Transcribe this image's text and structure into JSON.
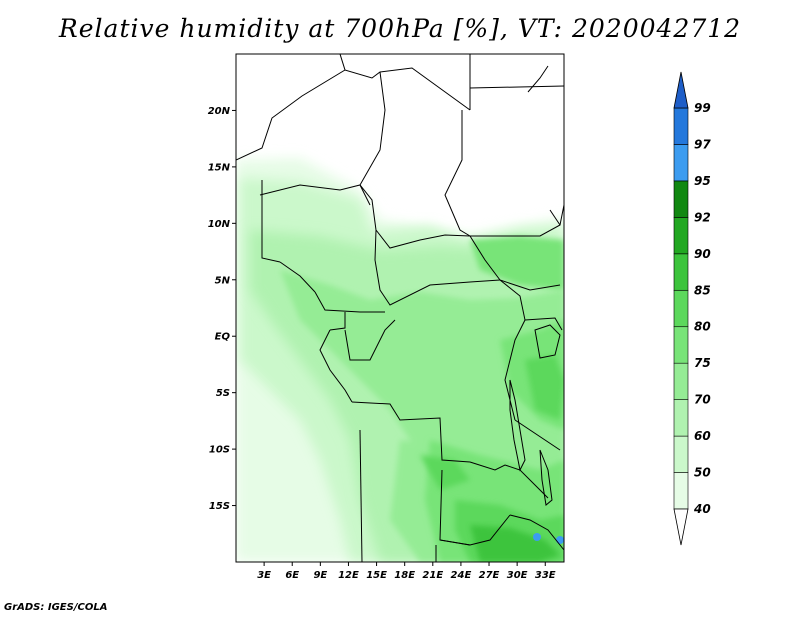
{
  "title": "Relative humidity at 700hPa [%], VT: 2020042712",
  "credit": "GrADS: IGES/COLA",
  "map": {
    "lon_range": [
      0,
      35
    ],
    "lat_range": [
      -20,
      25
    ],
    "lat_ticks": [
      {
        "value": 20,
        "label": "20N"
      },
      {
        "value": 15,
        "label": "15N"
      },
      {
        "value": 10,
        "label": "10N"
      },
      {
        "value": 5,
        "label": "5N"
      },
      {
        "value": 0,
        "label": "EQ"
      },
      {
        "value": -5,
        "label": "5S"
      },
      {
        "value": -10,
        "label": "10S"
      },
      {
        "value": -15,
        "label": "15S"
      }
    ],
    "lon_ticks": [
      {
        "value": 3,
        "label": "3E"
      },
      {
        "value": 6,
        "label": "6E"
      },
      {
        "value": 9,
        "label": "9E"
      },
      {
        "value": 12,
        "label": "12E"
      },
      {
        "value": 15,
        "label": "15E"
      },
      {
        "value": 18,
        "label": "18E"
      },
      {
        "value": 21,
        "label": "21E"
      },
      {
        "value": 24,
        "label": "24E"
      },
      {
        "value": 27,
        "label": "27E"
      },
      {
        "value": 30,
        "label": "30E"
      },
      {
        "value": 33,
        "label": "33E"
      }
    ]
  },
  "colorbar": {
    "levels": [
      {
        "label": "40",
        "color": "#ffffff"
      },
      {
        "label": "50",
        "color": "#e6fce6"
      },
      {
        "label": "60",
        "color": "#cbf8cb"
      },
      {
        "label": "70",
        "color": "#b0f2b0"
      },
      {
        "label": "75",
        "color": "#95ec95"
      },
      {
        "label": "80",
        "color": "#78e478"
      },
      {
        "label": "85",
        "color": "#5cd85c"
      },
      {
        "label": "90",
        "color": "#3cc43c"
      },
      {
        "label": "92",
        "color": "#22a822"
      },
      {
        "label": "95",
        "color": "#118811"
      },
      {
        "label": "97",
        "color": "#3c9cf0"
      },
      {
        "label": "99",
        "color": "#2478dc"
      }
    ],
    "top_color": "#1e5ec8",
    "bottom_color": "#ffffff"
  }
}
